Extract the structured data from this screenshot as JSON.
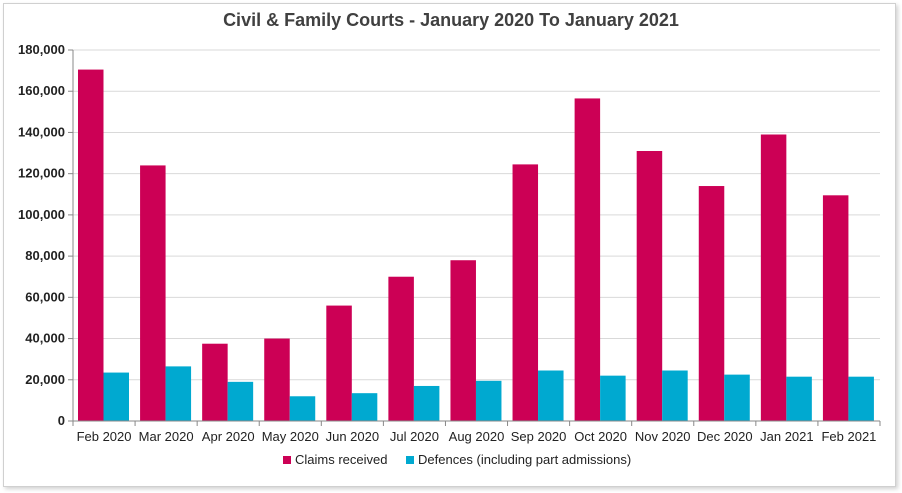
{
  "chart_data": {
    "type": "bar",
    "title": "Civil & Family Courts - January 2020 To January 2021",
    "categories": [
      "Feb 2020",
      "Mar 2020",
      "Apr 2020",
      "May 2020",
      "Jun 2020",
      "Jul 2020",
      "Aug 2020",
      "Sep 2020",
      "Oct 2020",
      "Nov 2020",
      "Dec 2020",
      "Jan 2021",
      "Feb 2021"
    ],
    "series": [
      {
        "name": "Claims received",
        "color": "#cc0055",
        "values": [
          170500,
          124000,
          37500,
          40000,
          56000,
          70000,
          78000,
          124500,
          156500,
          131000,
          114000,
          139000,
          109500
        ]
      },
      {
        "name": "Defences (including part admissions)",
        "color": "#00a9d0",
        "values": [
          23500,
          26500,
          19000,
          12000,
          13500,
          17000,
          19500,
          24500,
          22000,
          24500,
          22500,
          21500,
          21500
        ]
      }
    ],
    "ylim": [
      0,
      180000
    ],
    "yticks": [
      "0",
      "20,000",
      "40,000",
      "60,000",
      "80,000",
      "100,000",
      "120,000",
      "140,000",
      "160,000",
      "180,000"
    ],
    "grid": true,
    "legend": "bottom-center"
  }
}
